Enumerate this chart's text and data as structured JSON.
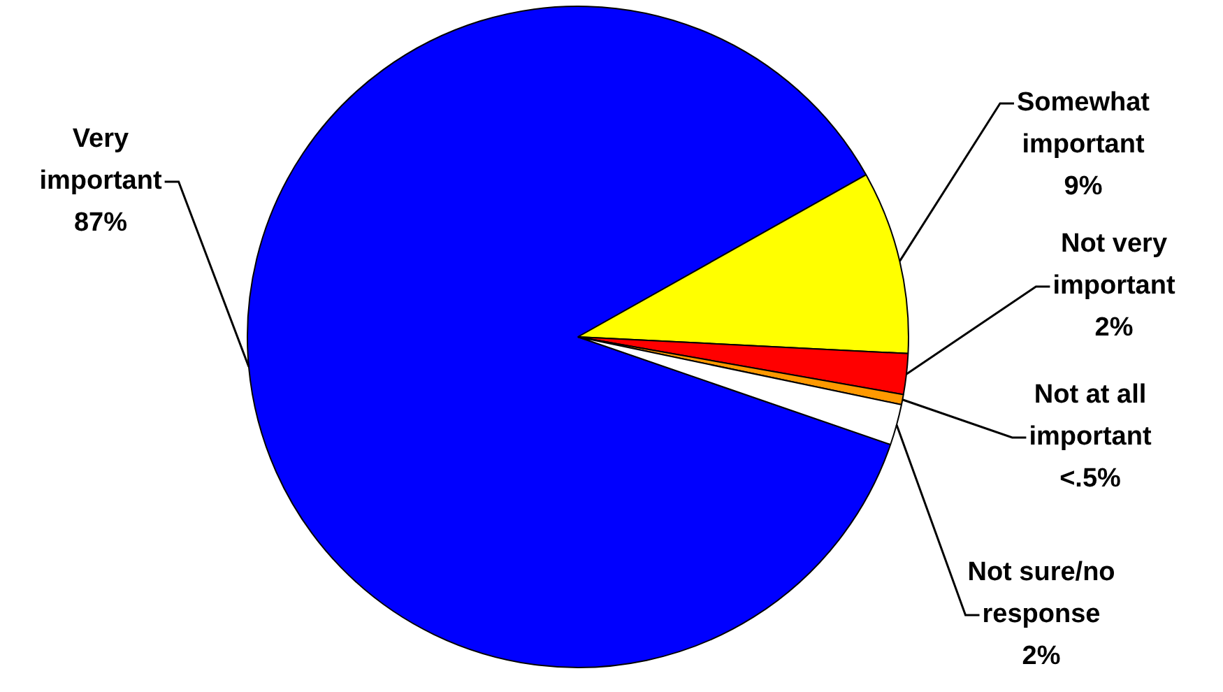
{
  "chart_data": {
    "type": "pie",
    "categories": [
      "Very important",
      "Somewhat important",
      "Not very important",
      "Not at all important",
      "Not sure/no response"
    ],
    "values": [
      87,
      9,
      2,
      0.5,
      2
    ],
    "value_labels": [
      "87%",
      "9%",
      "2%",
      "<.5%",
      "2%"
    ],
    "colors": [
      "#0000ff",
      "#ffff00",
      "#ff0000",
      "#ff9900",
      "#ffffff"
    ],
    "legend": false
  }
}
